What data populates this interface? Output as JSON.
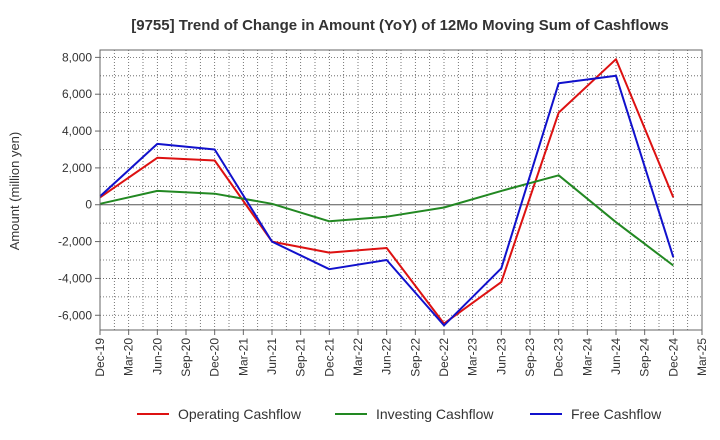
{
  "chart_data": {
    "type": "line",
    "title": "[9755]  Trend of Change in Amount (YoY) of 12Mo Moving Sum of Cashflows",
    "xlabel": "",
    "ylabel": "Amount (million yen)",
    "ylim": [
      -6800,
      8400
    ],
    "yticks": [
      8000,
      6000,
      4000,
      2000,
      0,
      -2000,
      -4000,
      -6000
    ],
    "ytick_labels": [
      "8,000",
      "6,000",
      "4,000",
      "2,000",
      "0",
      "-2,000",
      "-4,000",
      "-6,000"
    ],
    "categories": [
      "Dec-19",
      "Mar-20",
      "Jun-20",
      "Sep-20",
      "Dec-20",
      "Mar-21",
      "Jun-21",
      "Sep-21",
      "Dec-21",
      "Mar-22",
      "Jun-22",
      "Sep-22",
      "Dec-22",
      "Mar-23",
      "Jun-23",
      "Sep-23",
      "Dec-23",
      "Mar-24",
      "Jun-24",
      "Sep-24",
      "Dec-24",
      "Mar-25"
    ],
    "series": [
      {
        "name": "Operating Cashflow",
        "color": "#dd1111",
        "values": [
          400,
          null,
          2550,
          null,
          2400,
          null,
          -2000,
          null,
          -2600,
          null,
          -2350,
          null,
          -6450,
          null,
          -4200,
          null,
          5000,
          null,
          7900,
          null,
          400,
          null
        ]
      },
      {
        "name": "Investing Cashflow",
        "color": "#228822",
        "values": [
          50,
          null,
          750,
          null,
          600,
          null,
          50,
          null,
          -900,
          null,
          -650,
          null,
          -150,
          null,
          750,
          null,
          1600,
          null,
          -950,
          null,
          -3300,
          null
        ]
      },
      {
        "name": "Free Cashflow",
        "color": "#1111cc",
        "values": [
          450,
          null,
          3300,
          null,
          3000,
          null,
          -2000,
          null,
          -3500,
          null,
          -3000,
          null,
          -6550,
          null,
          -3450,
          null,
          6600,
          null,
          7000,
          null,
          -2850,
          null
        ]
      }
    ]
  }
}
